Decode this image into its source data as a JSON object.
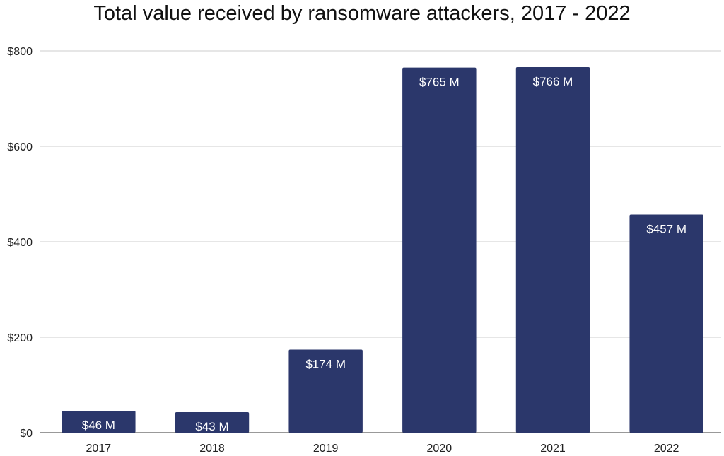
{
  "chart_data": {
    "type": "bar",
    "title": "Total value received by ransomware attackers, 2017 - 2022",
    "categories": [
      "2017",
      "2018",
      "2019",
      "2020",
      "2021",
      "2022"
    ],
    "values": [
      46,
      43,
      174,
      765,
      766,
      457
    ],
    "data_labels": [
      "$46 M",
      "$43 M",
      "$174 M",
      "$765 M",
      "$766 M",
      "$457 M"
    ],
    "y_ticks": [
      0,
      200,
      400,
      600,
      800
    ],
    "y_tick_labels": [
      "$0",
      "$200",
      "$400",
      "$600",
      "$800"
    ],
    "ylim": [
      0,
      800
    ],
    "xlabel": "",
    "ylabel": "",
    "grid": true,
    "legend": "none",
    "bar_color": "#2b376b",
    "gridline_color": "#cccccc"
  }
}
